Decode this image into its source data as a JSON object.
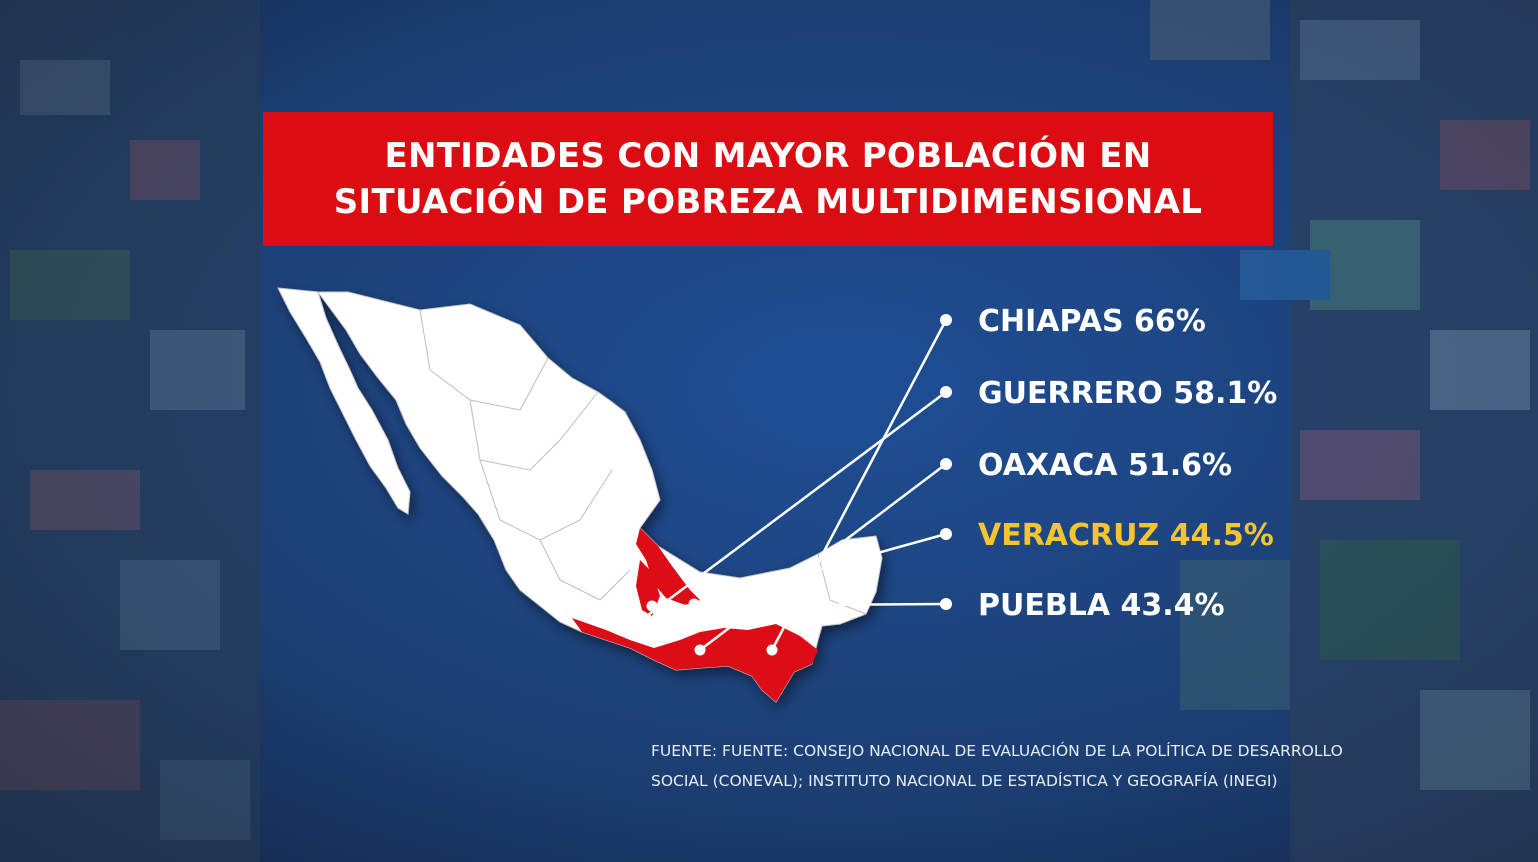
{
  "title": {
    "line1": "ENTIDADES CON MAYOR POBLACIÓN EN",
    "line2": "SITUACIÓN DE POBREZA MULTIDIMENSIONAL"
  },
  "states": [
    {
      "name": "CHIAPAS",
      "label": "CHIAPAS 66%",
      "value": 66,
      "highlight": false
    },
    {
      "name": "GUERRERO",
      "label": "GUERRERO 58.1%",
      "value": 58.1,
      "highlight": false
    },
    {
      "name": "OAXACA",
      "label": "OAXACA 51.6%",
      "value": 51.6,
      "highlight": false
    },
    {
      "name": "VERACRUZ",
      "label": "VERACRUZ 44.5%",
      "value": 44.5,
      "highlight": true
    },
    {
      "name": "PUEBLA",
      "label": "PUEBLA 43.4%",
      "value": 43.4,
      "highlight": false
    }
  ],
  "source": {
    "line1": "FUENTE: FUENTE: CONSEJO NACIONAL DE EVALUACIÓN DE LA POLÍTICA DE DESARROLLO",
    "line2": "SOCIAL (CONEVAL); INSTITUTO NACIONAL DE ESTADÍSTICA Y GEOGRAFÍA (INEGI)"
  },
  "colors": {
    "title_bg": "#dc0d12",
    "highlighted_state": "#dc0d12",
    "map_land": "#ffffff",
    "label_text": "#ffffff",
    "highlight_label": "#f5c431",
    "background_overlay": "#1c3f74"
  }
}
